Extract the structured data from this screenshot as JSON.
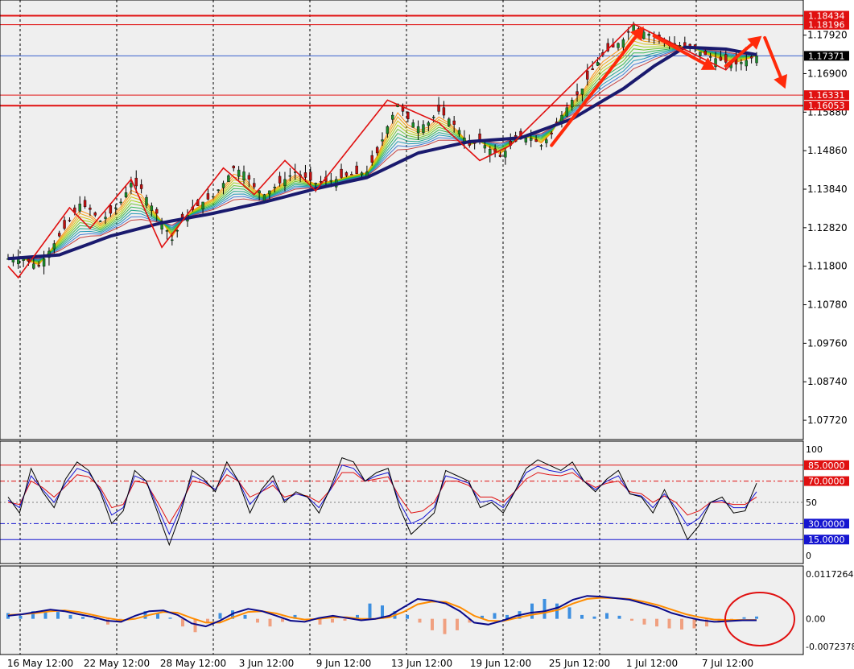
{
  "colors": {
    "background": "#efefef",
    "grid": "#000000",
    "frame": "#000000",
    "level_line": "#e01010",
    "level_label_bg": "#e01010",
    "price_label_bg": "#000000",
    "ema_slow": "#1a1a6e",
    "zigzag": "#e01010",
    "arrow": "#ff2a0a",
    "bull_candle": "#1b8a2a",
    "bear_candle": "#c01010",
    "stoch_fast": "#000000",
    "stoch_mid": "#1515d0",
    "stoch_slow": "#e01010",
    "macd_line": "#0a0a8a",
    "signal_line": "#ff8c00",
    "hist_pos": "#3d8fe0",
    "hist_neg": "#f0a080"
  },
  "chart_data": [
    {
      "type": "candlestick",
      "panel": "price",
      "ylim": [
        1.0721,
        1.1885
      ],
      "y_ticks": [
        "1.17920",
        "1.16900",
        "1.15880",
        "1.14860",
        "1.13840",
        "1.12820",
        "1.11800",
        "1.10780",
        "1.09760",
        "1.08740",
        "1.07720"
      ],
      "x_ticks": [
        "16 May 12:00",
        "22 May 12:00",
        "28 May 12:00",
        "3 Jun 12:00",
        "9 Jun 12:00",
        "13 Jun 12:00",
        "19 Jun 12:00",
        "25 Jun 12:00",
        "1 Jul 12:00",
        "7 Jul 12:00"
      ],
      "levels": [
        {
          "value": 1.18434,
          "label": "1.18434"
        },
        {
          "value": 1.18196,
          "label": "1.18196"
        },
        {
          "value": 1.16331,
          "label": "1.16331"
        },
        {
          "value": 1.16053,
          "label": "1.16053"
        }
      ],
      "current_price": {
        "value": 1.17371,
        "label": "1.17371"
      },
      "close_path": [
        [
          0,
          1.12
        ],
        [
          1,
          1.1205
        ],
        [
          3,
          1.118
        ],
        [
          4,
          1.122
        ],
        [
          5,
          1.126
        ],
        [
          6,
          1.13
        ],
        [
          7,
          1.1345
        ],
        [
          8,
          1.133
        ],
        [
          9,
          1.13
        ],
        [
          10,
          1.132
        ],
        [
          11,
          1.135
        ],
        [
          12,
          1.14
        ],
        [
          13,
          1.1385
        ],
        [
          14,
          1.134
        ],
        [
          15,
          1.13
        ],
        [
          16,
          1.125
        ],
        [
          17,
          1.13
        ],
        [
          18,
          1.133
        ],
        [
          19,
          1.135
        ],
        [
          20,
          1.1365
        ],
        [
          21,
          1.14
        ],
        [
          22,
          1.144
        ],
        [
          23,
          1.143
        ],
        [
          24,
          1.139
        ],
        [
          25,
          1.137
        ],
        [
          26,
          1.139
        ],
        [
          27,
          1.141
        ],
        [
          28,
          1.143
        ],
        [
          29,
          1.1415
        ],
        [
          30,
          1.14
        ],
        [
          31,
          1.1405
        ],
        [
          32,
          1.141
        ],
        [
          33,
          1.142
        ],
        [
          34,
          1.1425
        ],
        [
          35,
          1.143
        ],
        [
          36,
          1.148
        ],
        [
          37,
          1.155
        ],
        [
          38,
          1.161
        ],
        [
          39,
          1.157
        ],
        [
          40,
          1.155
        ],
        [
          41,
          1.156
        ],
        [
          42,
          1.159
        ],
        [
          43,
          1.157
        ],
        [
          44,
          1.154
        ],
        [
          45,
          1.15
        ],
        [
          46,
          1.151
        ],
        [
          47,
          1.149
        ],
        [
          48,
          1.147
        ],
        [
          49,
          1.15
        ],
        [
          50,
          1.152
        ],
        [
          51,
          1.152
        ],
        [
          52,
          1.15
        ],
        [
          53,
          1.153
        ],
        [
          54,
          1.158
        ],
        [
          55,
          1.162
        ],
        [
          56,
          1.165
        ],
        [
          57,
          1.17
        ],
        [
          58,
          1.174
        ],
        [
          59,
          1.176
        ],
        [
          60,
          1.178
        ],
        [
          61,
          1.182
        ],
        [
          62,
          1.18
        ],
        [
          63,
          1.179
        ],
        [
          64,
          1.178
        ],
        [
          65,
          1.177
        ],
        [
          66,
          1.176
        ],
        [
          67,
          1.1755
        ],
        [
          68,
          1.174
        ],
        [
          69,
          1.173
        ],
        [
          70,
          1.172
        ],
        [
          71,
          1.1715
        ],
        [
          72,
          1.1725
        ],
        [
          73,
          1.1737
        ]
      ],
      "ema_slow": [
        [
          0,
          1.12
        ],
        [
          5,
          1.121
        ],
        [
          10,
          1.126
        ],
        [
          15,
          1.1295
        ],
        [
          20,
          1.132
        ],
        [
          25,
          1.135
        ],
        [
          30,
          1.1385
        ],
        [
          35,
          1.1415
        ],
        [
          40,
          1.148
        ],
        [
          45,
          1.151
        ],
        [
          50,
          1.152
        ],
        [
          55,
          1.157
        ],
        [
          60,
          1.165
        ],
        [
          63,
          1.171
        ],
        [
          66,
          1.176
        ],
        [
          70,
          1.1755
        ],
        [
          73,
          1.174
        ]
      ],
      "zigzag": [
        [
          0,
          1.118
        ],
        [
          1,
          1.115
        ],
        [
          6,
          1.1335
        ],
        [
          8,
          1.128
        ],
        [
          12,
          1.141
        ],
        [
          15,
          1.123
        ],
        [
          21,
          1.144
        ],
        [
          24,
          1.137
        ],
        [
          27,
          1.146
        ],
        [
          30,
          1.138
        ],
        [
          37,
          1.162
        ],
        [
          42,
          1.156
        ],
        [
          46,
          1.146
        ],
        [
          49,
          1.15
        ],
        [
          61,
          1.1822
        ],
        [
          67,
          1.174
        ],
        [
          70,
          1.17
        ],
        [
          72,
          1.176
        ]
      ],
      "arrows": [
        {
          "from": [
            53,
            1.15
          ],
          "to": [
            62,
            1.1815
          ]
        },
        {
          "from": [
            63,
            1.179
          ],
          "to": [
            69,
            1.17
          ]
        },
        {
          "from": [
            70,
            1.171
          ],
          "to": [
            73.5,
            1.179
          ]
        },
        {
          "from": [
            73.8,
            1.1785
          ],
          "to": [
            75.8,
            1.165
          ]
        }
      ]
    },
    {
      "type": "line",
      "panel": "stochastic",
      "ylim": [
        0,
        100
      ],
      "y_ticks": [
        "100",
        "50",
        "0"
      ],
      "levels": [
        {
          "value": 85,
          "label": "85.0000"
        },
        {
          "value": 70,
          "label": "70.0000"
        },
        {
          "value": 30,
          "label": "30.0000"
        },
        {
          "value": 15,
          "label": "15.0000"
        }
      ],
      "series": [
        {
          "values": [
            55,
            40,
            82,
            60,
            45,
            72,
            88,
            80,
            60,
            30,
            42,
            80,
            70,
            40,
            10,
            40,
            80,
            72,
            60,
            88,
            70,
            40,
            62,
            75,
            50,
            60,
            55,
            40,
            64,
            92,
            88,
            70,
            78,
            82,
            45,
            20,
            30,
            40,
            80,
            75,
            70,
            45,
            50,
            40,
            60,
            82,
            90,
            85,
            80,
            88,
            70,
            60,
            72,
            80,
            58,
            55,
            40,
            62,
            40,
            15,
            28,
            50,
            55,
            40,
            42,
            68
          ]
        },
        {
          "values": [
            52,
            45,
            75,
            62,
            50,
            68,
            82,
            78,
            62,
            38,
            45,
            75,
            70,
            45,
            20,
            45,
            75,
            70,
            62,
            82,
            70,
            48,
            60,
            70,
            52,
            58,
            55,
            45,
            62,
            85,
            82,
            70,
            75,
            78,
            50,
            30,
            35,
            45,
            75,
            72,
            68,
            50,
            52,
            45,
            60,
            78,
            84,
            80,
            78,
            82,
            70,
            62,
            70,
            75,
            58,
            56,
            45,
            58,
            45,
            28,
            35,
            50,
            52,
            45,
            45,
            60
          ]
        },
        {
          "values": [
            50,
            48,
            70,
            64,
            55,
            65,
            76,
            74,
            64,
            45,
            48,
            70,
            68,
            50,
            30,
            48,
            70,
            68,
            62,
            76,
            70,
            55,
            60,
            66,
            55,
            58,
            56,
            50,
            62,
            78,
            78,
            70,
            72,
            74,
            55,
            40,
            42,
            50,
            70,
            70,
            66,
            55,
            55,
            50,
            60,
            72,
            78,
            76,
            75,
            78,
            70,
            64,
            68,
            70,
            60,
            58,
            50,
            56,
            50,
            38,
            42,
            50,
            50,
            48,
            48,
            55
          ]
        }
      ]
    },
    {
      "type": "bar",
      "panel": "macd",
      "ylim": [
        -0.0072378,
        0.0117264
      ],
      "y_ticks": [
        "0.0117264",
        "0.00",
        "-0.0072378"
      ],
      "histogram": [
        0.0015,
        0.0008,
        0.002,
        0.0022,
        0.0018,
        0.001,
        0.0005,
        0.0,
        -0.0015,
        -0.001,
        0.0,
        0.002,
        0.0015,
        0.0003,
        -0.002,
        -0.0035,
        -0.001,
        0.0015,
        0.0022,
        0.001,
        -0.001,
        -0.002,
        -0.0008,
        0.001,
        -0.0005,
        -0.0015,
        -0.001,
        -0.0005,
        0.001,
        0.004,
        0.0035,
        0.002,
        0.001,
        -0.001,
        -0.003,
        -0.004,
        -0.003,
        -0.001,
        0.0008,
        0.0015,
        0.001,
        0.002,
        0.004,
        0.0052,
        0.004,
        0.003,
        0.001,
        0.0006,
        0.0015,
        0.0008,
        -0.0005,
        -0.0015,
        -0.002,
        -0.0025,
        -0.0028,
        -0.0025,
        -0.002,
        -0.001,
        -0.0003,
        0.0004,
        0.0006
      ],
      "series": [
        {
          "values": [
            0.0008,
            0.0012,
            0.0018,
            0.0024,
            0.002,
            0.0012,
            0.0005,
            -0.0005,
            -0.0008,
            0.0008,
            0.002,
            0.0022,
            0.001,
            -0.0012,
            -0.002,
            -0.0005,
            0.0015,
            0.0026,
            0.002,
            0.0008,
            -0.0005,
            -0.0008,
            0.0002,
            0.0008,
            0.0002,
            -0.0004,
            0.0,
            0.0008,
            0.003,
            0.0052,
            0.0048,
            0.004,
            0.002,
            -0.001,
            -0.0015,
            -0.0005,
            0.0008,
            0.0016,
            0.002,
            0.003,
            0.005,
            0.006,
            0.0058,
            0.0054,
            0.005,
            0.004,
            0.003,
            0.0015,
            0.0005,
            -0.0003,
            -0.0008,
            -0.0006,
            -0.0004,
            -0.0004
          ]
        },
        {
          "values": [
            0.001,
            0.0012,
            0.0015,
            0.002,
            0.0022,
            0.0018,
            0.001,
            0.0002,
            -0.0004,
            0.0,
            0.001,
            0.0018,
            0.0016,
            0.0002,
            -0.001,
            -0.001,
            0.0005,
            0.0018,
            0.002,
            0.0014,
            0.0004,
            -0.0002,
            0.0,
            0.0004,
            0.0004,
            0.0,
            0.0,
            0.0004,
            0.0018,
            0.0038,
            0.0045,
            0.0044,
            0.003,
            0.0008,
            -0.0005,
            -0.0006,
            0.0002,
            0.001,
            0.0016,
            0.0024,
            0.004,
            0.0052,
            0.0055,
            0.0054,
            0.0052,
            0.0045,
            0.0036,
            0.0024,
            0.0012,
            0.0004,
            -0.0002,
            -0.0003,
            -0.0003,
            -0.0003
          ]
        }
      ]
    }
  ]
}
